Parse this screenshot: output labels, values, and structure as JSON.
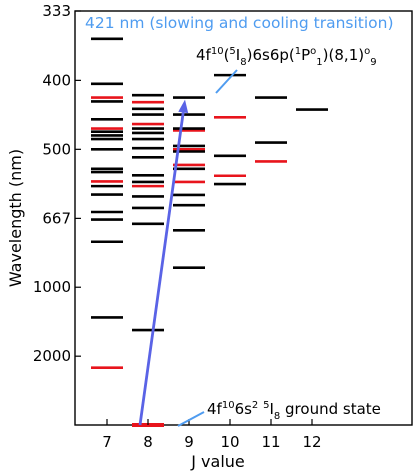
{
  "chart_data": {
    "type": "scatter",
    "title": "",
    "xlabel": "J value",
    "ylabel": "Wavelength (nm)",
    "x_ticks": [
      7,
      8,
      9,
      10,
      11,
      12
    ],
    "y_ticks": [
      {
        "value": 333,
        "label": "333"
      },
      {
        "value": 400,
        "label": "400"
      },
      {
        "value": 500,
        "label": "500"
      },
      {
        "value": 667,
        "label": "667"
      },
      {
        "value": 1000,
        "label": "1000"
      },
      {
        "value": 2000,
        "label": "2000"
      }
    ],
    "y_scale": "reciprocal",
    "y_limits": [
      333,
      1000000
    ],
    "grid": false,
    "colors": {
      "black_levels": "#000000",
      "red_levels": "#e8141c",
      "transition_arrow": "#5a63e6",
      "callout_line": "#4f9cf0",
      "title_text": "#4f9cf0"
    },
    "series": [
      {
        "color": "red",
        "levels": [
          {
            "j": 7,
            "nm": 421
          },
          {
            "j": 7,
            "nm": 465
          },
          {
            "j": 7,
            "nm": 566
          },
          {
            "j": 7,
            "nm": 2400
          },
          {
            "j": 8,
            "nm": 427
          },
          {
            "j": 8,
            "nm": 458
          },
          {
            "j": 8,
            "nm": 577
          },
          {
            "j": 9,
            "nm": 468
          },
          {
            "j": 9,
            "nm": 500
          },
          {
            "j": 9,
            "nm": 530
          },
          {
            "j": 9,
            "nm": 567
          },
          {
            "j": 10,
            "nm": 448
          },
          {
            "j": 10,
            "nm": 553
          },
          {
            "j": 11,
            "nm": 523
          }
        ]
      },
      {
        "color": "black",
        "levels": [
          {
            "j": 7,
            "nm": 357
          },
          {
            "j": 7,
            "nm": 404
          },
          {
            "j": 7,
            "nm": 426
          },
          {
            "j": 7,
            "nm": 451
          },
          {
            "j": 7,
            "nm": 470
          },
          {
            "j": 7,
            "nm": 476
          },
          {
            "j": 7,
            "nm": 482
          },
          {
            "j": 7,
            "nm": 500
          },
          {
            "j": 7,
            "nm": 538
          },
          {
            "j": 7,
            "nm": 545
          },
          {
            "j": 7,
            "nm": 577
          },
          {
            "j": 7,
            "nm": 598
          },
          {
            "j": 7,
            "nm": 647
          },
          {
            "j": 7,
            "nm": 671
          },
          {
            "j": 7,
            "nm": 752
          },
          {
            "j": 7,
            "nm": 1280
          },
          {
            "j": 8,
            "nm": 418
          },
          {
            "j": 8,
            "nm": 436
          },
          {
            "j": 8,
            "nm": 444
          },
          {
            "j": 8,
            "nm": 465
          },
          {
            "j": 8,
            "nm": 472
          },
          {
            "j": 8,
            "nm": 482
          },
          {
            "j": 8,
            "nm": 498
          },
          {
            "j": 8,
            "nm": 515
          },
          {
            "j": 8,
            "nm": 552
          },
          {
            "j": 8,
            "nm": 567
          },
          {
            "j": 8,
            "nm": 603
          },
          {
            "j": 8,
            "nm": 635
          },
          {
            "j": 8,
            "nm": 685
          },
          {
            "j": 8,
            "nm": 1450
          },
          {
            "j": 9,
            "nm": 421
          },
          {
            "j": 9,
            "nm": 444
          },
          {
            "j": 9,
            "nm": 465
          },
          {
            "j": 9,
            "nm": 494
          },
          {
            "j": 9,
            "nm": 504
          },
          {
            "j": 9,
            "nm": 538
          },
          {
            "j": 9,
            "nm": 599
          },
          {
            "j": 9,
            "nm": 627
          },
          {
            "j": 9,
            "nm": 708
          },
          {
            "j": 9,
            "nm": 876
          },
          {
            "j": 10,
            "nm": 394
          },
          {
            "j": 10,
            "nm": 512
          },
          {
            "j": 10,
            "nm": 572
          },
          {
            "j": 11,
            "nm": 421
          },
          {
            "j": 11,
            "nm": 488
          },
          {
            "j": 12,
            "nm": 437
          }
        ]
      },
      {
        "color": "red",
        "ground_state": true,
        "levels": [
          {
            "j": 8,
            "nm": 1000000
          }
        ]
      }
    ],
    "annotations": {
      "transition_label": "421 nm (slowing and cooling transition)",
      "excited_state": {
        "t1": "4f",
        "s1": "10",
        "t2": "(",
        "s2": "5",
        "t3": "I",
        "b1": "8",
        "t4": ")6s6p(",
        "s3": "1",
        "t5": "P",
        "s4": "o",
        "b2": "1",
        "t6": ")(8,1)",
        "s5": "o",
        "b3": "9"
      },
      "ground_state": {
        "t1": "4f",
        "s1": "10",
        "t2": "6s",
        "s2": "2",
        "t3": " ",
        "s3": "5",
        "t4": "I",
        "b1": "8",
        "t5": " ground state"
      },
      "transition_arrow": {
        "from": {
          "j": 8,
          "nm": 1000000
        },
        "to": {
          "j": 9,
          "nm": 421
        }
      }
    }
  }
}
